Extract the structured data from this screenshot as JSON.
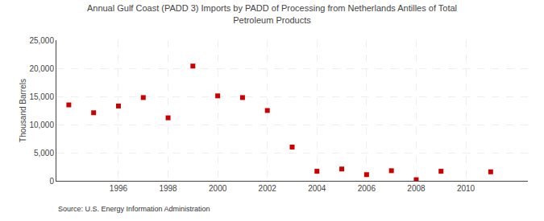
{
  "chart_data": {
    "type": "scatter",
    "title": "Annual Gulf Coast (PADD 3) Imports by PADD of Processing from Netherlands Antilles of Total\nPetroleum Products",
    "ylabel": "Thousand Barrels",
    "annotations": [
      "Source: U.S. Energy Information Administration"
    ],
    "x": [
      1994,
      1995,
      1996,
      1997,
      1998,
      1999,
      2000,
      2001,
      2002,
      2003,
      2004,
      2005,
      2006,
      2007,
      2008,
      2009,
      2011
    ],
    "values": [
      13500,
      12100,
      13300,
      14800,
      11200,
      20400,
      15100,
      14800,
      12500,
      6000,
      1700,
      2100,
      1100,
      1800,
      200,
      1700,
      1600
    ],
    "color": "#cc0000",
    "marker": "square",
    "xlim": [
      1993.5,
      2012.5
    ],
    "xticks": [
      1996,
      1998,
      2000,
      2002,
      2004,
      2006,
      2008,
      2010
    ],
    "ylim": [
      0,
      25000
    ],
    "yticks": [
      0,
      {
        "value": 5000,
        "label": "5,000"
      },
      {
        "value": 10000,
        "label": "10,000"
      },
      {
        "value": 15000,
        "label": "15,000"
      },
      {
        "value": 20000,
        "label": "20,000"
      },
      {
        "value": 25000,
        "label": "25,000"
      }
    ],
    "grid": true
  }
}
